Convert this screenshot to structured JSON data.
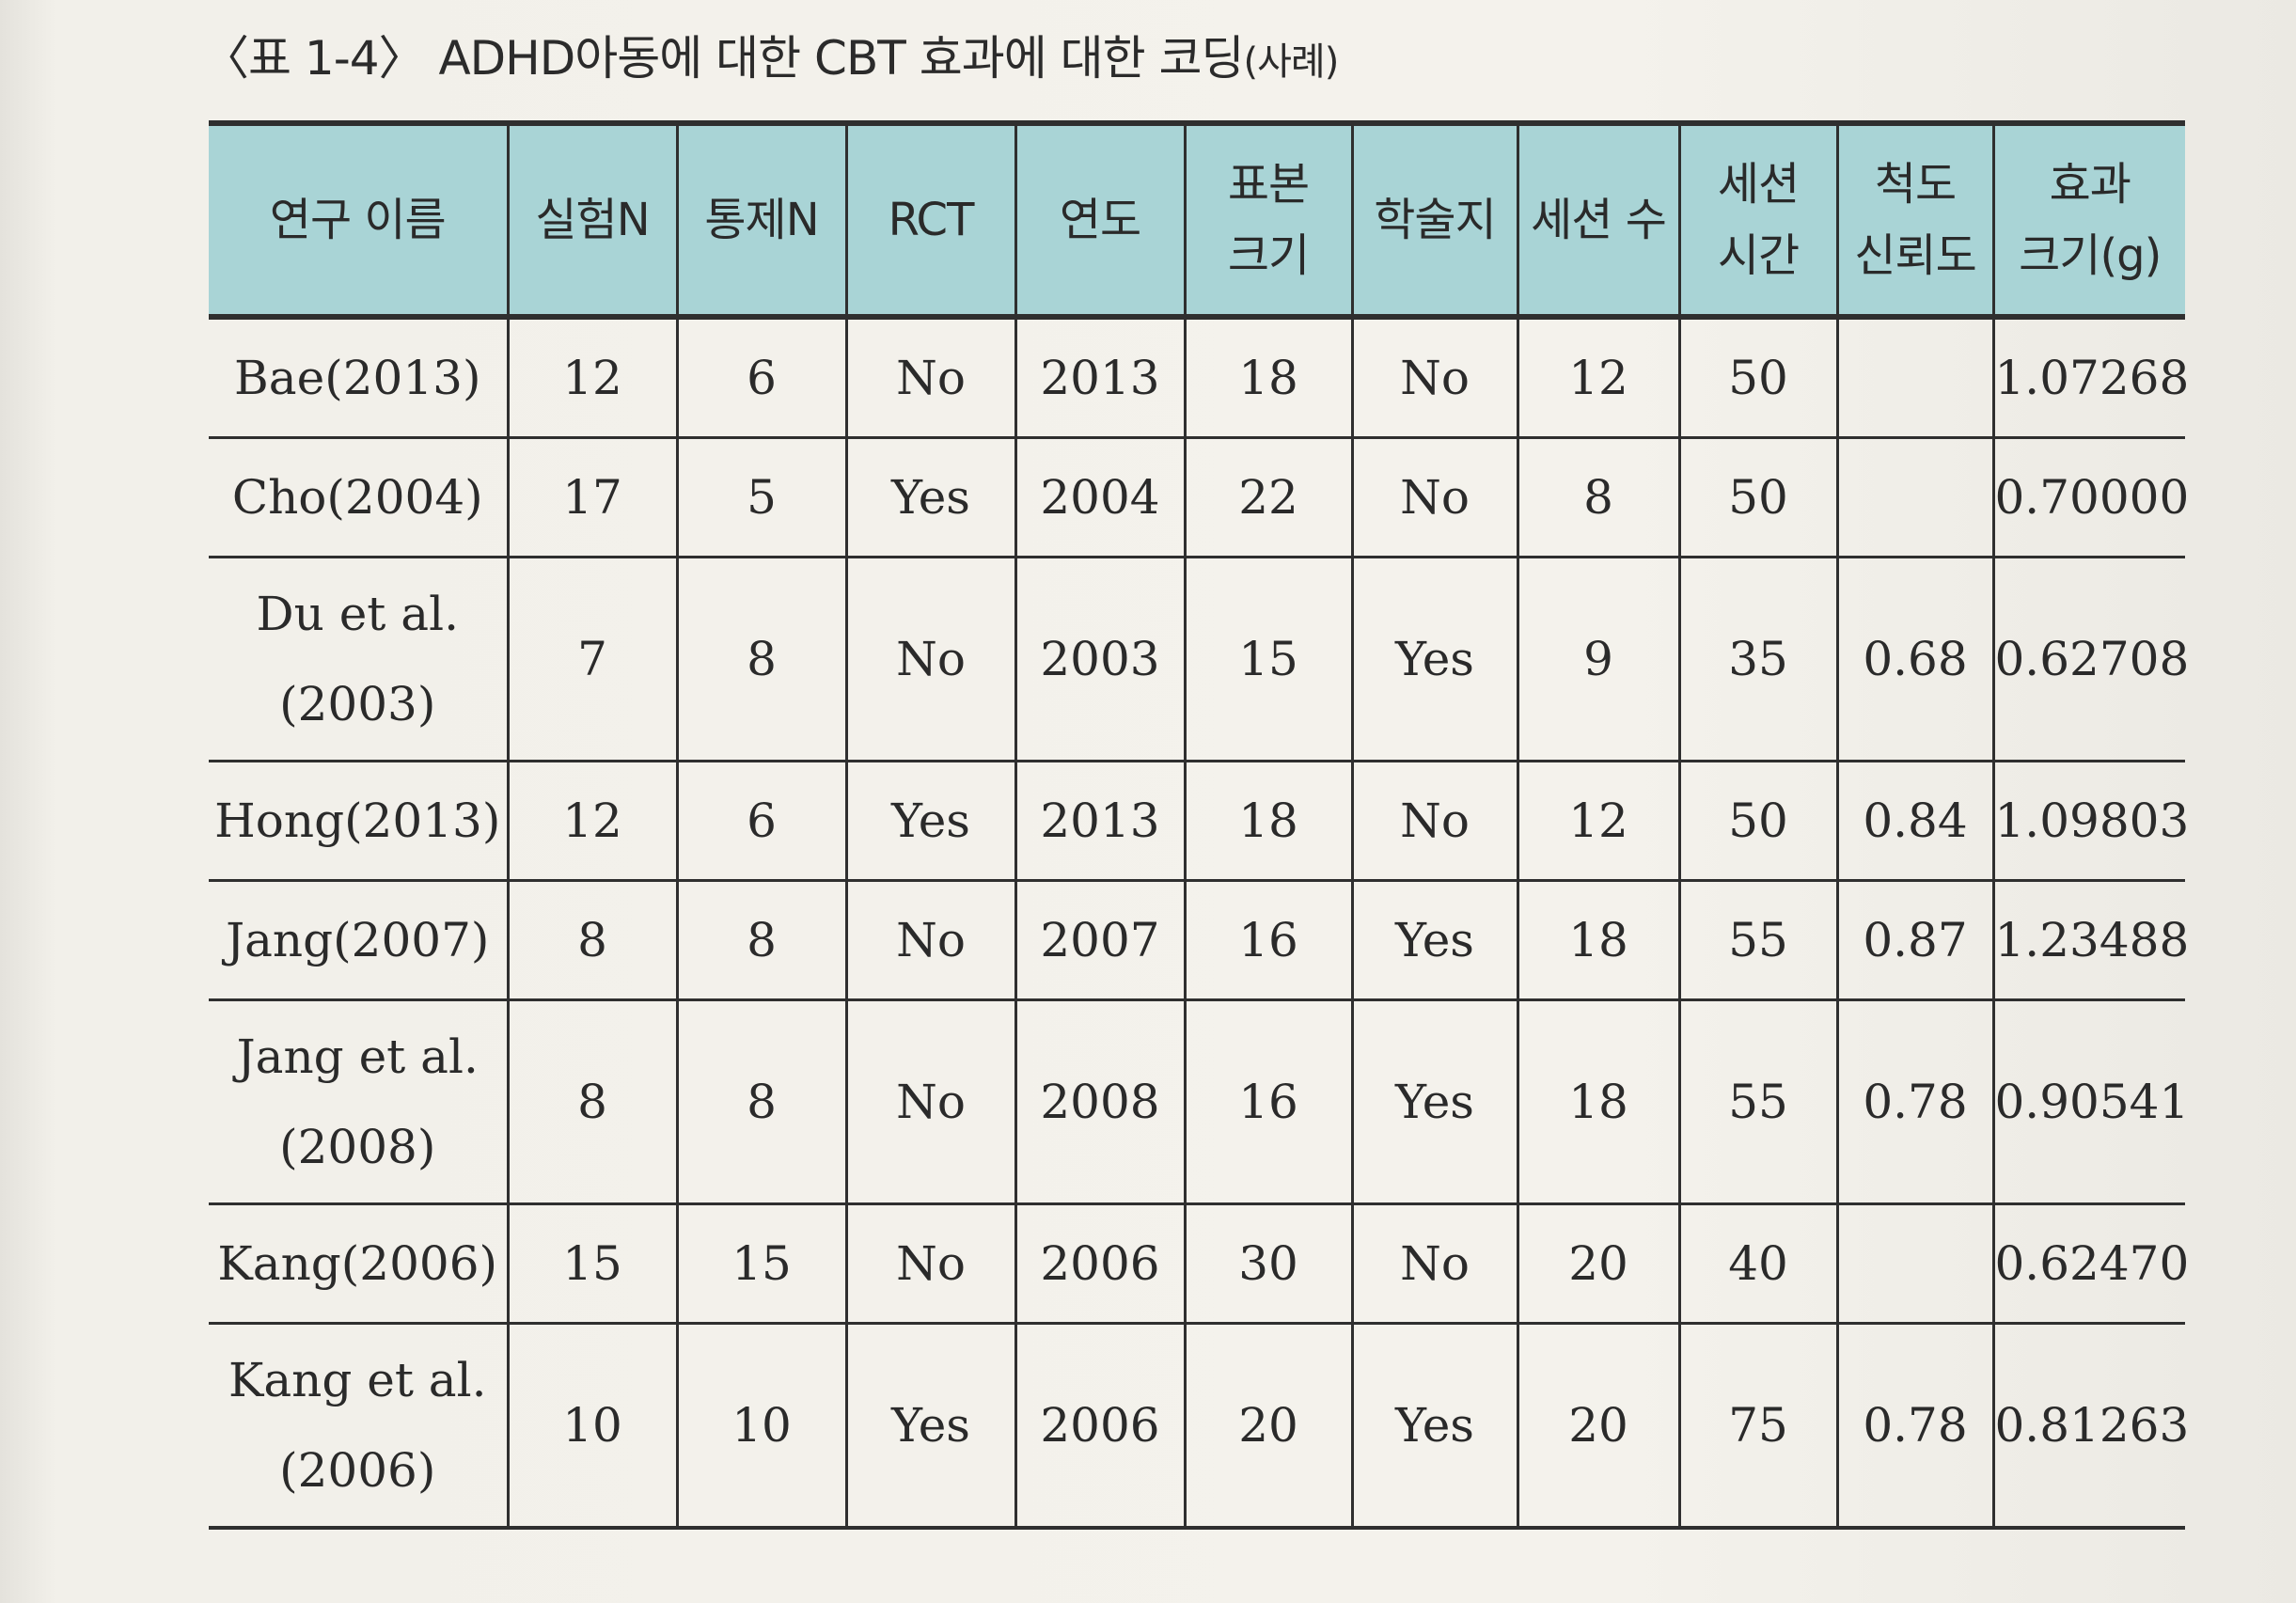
{
  "caption": {
    "main": "〈표 1-4〉 ADHD아동에 대한 CBT 효과에 대한 코딩",
    "suffix": "(사례)"
  },
  "table": {
    "headers": [
      "연구 이름",
      "실험N",
      "통제N",
      "RCT",
      "연도",
      "표본\n크기",
      "학술지",
      "세션 수",
      "세션\n시간",
      "척도\n신뢰도",
      "효과\n크기(g)"
    ],
    "rows": [
      [
        "Bae(2013)",
        "12",
        "6",
        "No",
        "2013",
        "18",
        "No",
        "12",
        "50",
        "",
        "1.07268"
      ],
      [
        "Cho(2004)",
        "17",
        "5",
        "Yes",
        "2004",
        "22",
        "No",
        "8",
        "50",
        "",
        "0.70000"
      ],
      [
        "Du et al.\n(2003)",
        "7",
        "8",
        "No",
        "2003",
        "15",
        "Yes",
        "9",
        "35",
        "0.68",
        "0.62708"
      ],
      [
        "Hong(2013)",
        "12",
        "6",
        "Yes",
        "2013",
        "18",
        "No",
        "12",
        "50",
        "0.84",
        "1.09803"
      ],
      [
        "Jang(2007)",
        "8",
        "8",
        "No",
        "2007",
        "16",
        "Yes",
        "18",
        "55",
        "0.87",
        "1.23488"
      ],
      [
        "Jang et al.\n(2008)",
        "8",
        "8",
        "No",
        "2008",
        "16",
        "Yes",
        "18",
        "55",
        "0.78",
        "0.90541"
      ],
      [
        "Kang(2006)",
        "15",
        "15",
        "No",
        "2006",
        "30",
        "No",
        "20",
        "40",
        "",
        "0.62470"
      ],
      [
        "Kang et al.\n(2006)",
        "10",
        "10",
        "Yes",
        "2006",
        "20",
        "Yes",
        "20",
        "75",
        "0.78",
        "0.81263"
      ]
    ]
  }
}
